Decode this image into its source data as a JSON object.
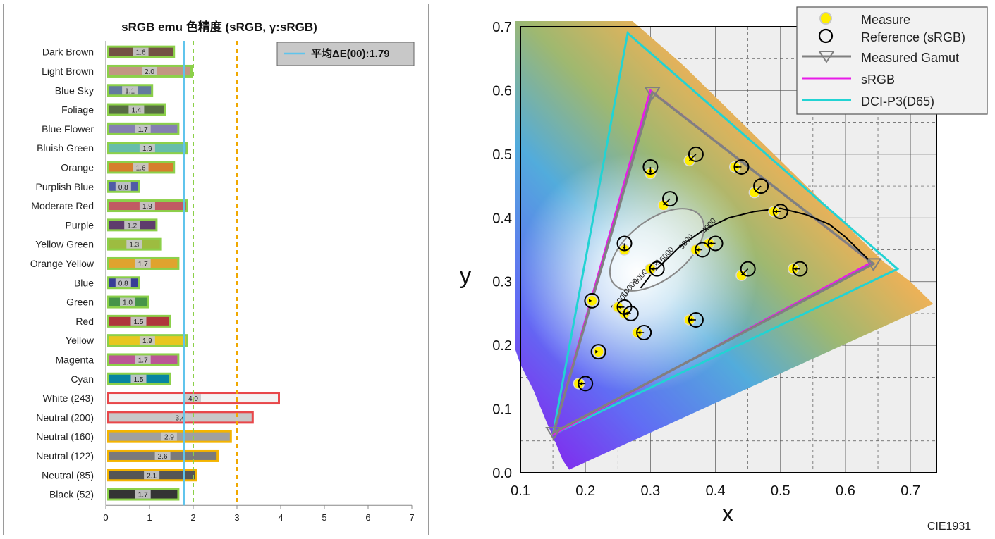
{
  "left_chart": {
    "title": "sRGB emu 色精度 (sRGB, γ:sRGB)",
    "legend_label": "平均ΔE(00):1.79",
    "x_ticks": [
      "0",
      "1",
      "2",
      "3",
      "4",
      "5",
      "6",
      "7"
    ],
    "chart_data": {
      "type": "bar",
      "orientation": "horizontal",
      "title": "sRGB emu 色精度 (sRGB, γ:sRGB)",
      "xlim": [
        0,
        7
      ],
      "categories": [
        "Dark Brown",
        "Light Brown",
        "Blue Sky",
        "Foliage",
        "Blue Flower",
        "Bluish Green",
        "Orange",
        "Purplish Blue",
        "Moderate Red",
        "Purple",
        "Yellow Green",
        "Orange Yellow",
        "Blue",
        "Green",
        "Red",
        "Yellow",
        "Magenta",
        "Cyan",
        "White (243)",
        "Neutral (200)",
        "Neutral (160)",
        "Neutral (122)",
        "Neutral (85)",
        "Black (52)"
      ],
      "values": [
        1.6,
        2.0,
        1.1,
        1.4,
        1.7,
        1.9,
        1.6,
        0.8,
        1.9,
        1.2,
        1.3,
        1.7,
        0.8,
        1.0,
        1.5,
        1.9,
        1.7,
        1.5,
        4.0,
        3.4,
        2.9,
        2.6,
        2.1,
        1.7
      ],
      "value_labels": [
        "1.6",
        "2.0",
        "1.1",
        "1.4",
        "1.7",
        "1.9",
        "1.6",
        "0.8",
        "1.9",
        "1.2",
        "1.3",
        "1.7",
        "0.8",
        "1.0",
        "1.5",
        "1.9",
        "1.7",
        "1.5",
        "4.0",
        "3.4",
        "2.9",
        "2.6",
        "2.1",
        "1.7"
      ],
      "fill_colors": [
        "#735244",
        "#c29682",
        "#627a9d",
        "#576c43",
        "#8580b1",
        "#67bdaa",
        "#d67e2c",
        "#505ba6",
        "#c15a63",
        "#5e3c6c",
        "#9dbc40",
        "#e0a32e",
        "#383d96",
        "#469449",
        "#af363c",
        "#e7c71f",
        "#bb5695",
        "#0885a1",
        "#f3f3f3",
        "#c8c8c8",
        "#a0a0a0",
        "#7a7a7a",
        "#555555",
        "#343434"
      ],
      "border_colors": [
        "#8cd04a",
        "#8cd04a",
        "#8cd04a",
        "#8cd04a",
        "#8cd04a",
        "#8cd04a",
        "#8cd04a",
        "#8cd04a",
        "#8cd04a",
        "#8cd04a",
        "#8cd04a",
        "#8cd04a",
        "#8cd04a",
        "#8cd04a",
        "#8cd04a",
        "#8cd04a",
        "#8cd04a",
        "#8cd04a",
        "#e8474a",
        "#e8474a",
        "#f4b400",
        "#f4b400",
        "#f4b400",
        "#8cd04a"
      ],
      "reference_lines": [
        {
          "value": 1.79,
          "style": "solid",
          "color": "#5fc4ec"
        },
        {
          "value": 2.0,
          "style": "dashed",
          "color": "#8cd04a"
        },
        {
          "value": 3.0,
          "style": "dashed",
          "color": "#f0a800"
        }
      ]
    }
  },
  "right_chart": {
    "x_axis_label": "x",
    "y_axis_label": "y",
    "footer_label": "CIE1931",
    "x_ticks": [
      "0.1",
      "0.2",
      "0.3",
      "0.4",
      "0.5",
      "0.6",
      "0.7"
    ],
    "y_ticks": [
      "0.0",
      "0.1",
      "0.2",
      "0.3",
      "0.4",
      "0.5",
      "0.6",
      "0.7"
    ],
    "legend": {
      "measure": "Measure",
      "reference": "Reference (sRGB)",
      "gamut": "Measured Gamut",
      "srgb": "sRGB",
      "dci": "DCI-P3(D65)"
    },
    "cct_labels": [
      "4000",
      "5000",
      "6000",
      "7000",
      "8000",
      "10000",
      "20000"
    ],
    "colors": {
      "measure": "#ffee00",
      "reference": "#000000",
      "gamut": "#808080",
      "srgb": "#e81ce8",
      "dci": "#22d3d3"
    },
    "chart_data": {
      "type": "scatter",
      "xlim": [
        0.1,
        0.74
      ],
      "ylim": [
        0.0,
        0.7
      ],
      "measured_gamut": [
        [
          0.303,
          0.597
        ],
        [
          0.643,
          0.328
        ],
        [
          0.151,
          0.063
        ]
      ],
      "srgb_gamut": [
        [
          0.64,
          0.33
        ],
        [
          0.3,
          0.6
        ],
        [
          0.15,
          0.06
        ]
      ],
      "dci_p3_gamut": [
        [
          0.68,
          0.32
        ],
        [
          0.265,
          0.69
        ],
        [
          0.15,
          0.06
        ]
      ],
      "reference_points": [
        [
          0.4,
          0.36
        ],
        [
          0.38,
          0.35
        ],
        [
          0.27,
          0.25
        ],
        [
          0.33,
          0.43
        ],
        [
          0.26,
          0.36
        ],
        [
          0.31,
          0.32
        ],
        [
          0.3,
          0.48
        ],
        [
          0.37,
          0.5
        ],
        [
          0.44,
          0.48
        ],
        [
          0.47,
          0.45
        ],
        [
          0.5,
          0.41
        ],
        [
          0.53,
          0.32
        ],
        [
          0.45,
          0.32
        ],
        [
          0.37,
          0.24
        ],
        [
          0.29,
          0.22
        ],
        [
          0.26,
          0.26
        ],
        [
          0.21,
          0.27
        ],
        [
          0.22,
          0.19
        ],
        [
          0.2,
          0.14
        ]
      ],
      "measured_points": [
        [
          0.39,
          0.36
        ],
        [
          0.37,
          0.35
        ],
        [
          0.26,
          0.25
        ],
        [
          0.32,
          0.42
        ],
        [
          0.26,
          0.35
        ],
        [
          0.3,
          0.32
        ],
        [
          0.3,
          0.47
        ],
        [
          0.36,
          0.49
        ],
        [
          0.43,
          0.48
        ],
        [
          0.46,
          0.44
        ],
        [
          0.49,
          0.41
        ],
        [
          0.52,
          0.32
        ],
        [
          0.44,
          0.31
        ],
        [
          0.36,
          0.24
        ],
        [
          0.28,
          0.22
        ],
        [
          0.25,
          0.26
        ],
        [
          0.21,
          0.27
        ],
        [
          0.22,
          0.19
        ],
        [
          0.19,
          0.14
        ]
      ]
    }
  }
}
